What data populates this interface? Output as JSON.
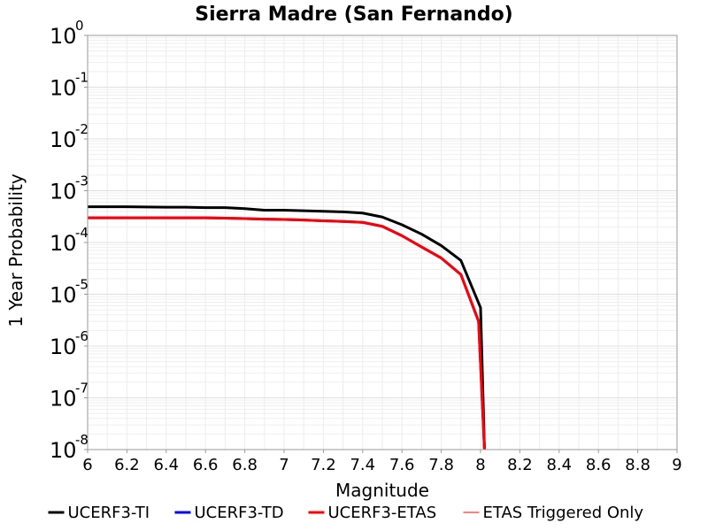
{
  "chart_data": {
    "type": "line",
    "title": "Sierra Madre (San Fernando)",
    "xlabel": "Magnitude",
    "ylabel": "1 Year Probability",
    "xlim": [
      6,
      9
    ],
    "ylim": [
      1e-08,
      1
    ],
    "yscale": "log",
    "grid": true,
    "legend_position": "bottom",
    "x_ticks": [
      "6",
      "6.2",
      "6.4",
      "6.6",
      "6.8",
      "7",
      "7.2",
      "7.4",
      "7.6",
      "7.8",
      "8",
      "8.2",
      "8.4",
      "8.6",
      "8.8",
      "9"
    ],
    "y_ticks": [
      {
        "base": "10",
        "exp": "0",
        "value": 1
      },
      {
        "base": "10",
        "exp": "-1",
        "value": 0.1
      },
      {
        "base": "10",
        "exp": "-2",
        "value": 0.01
      },
      {
        "base": "10",
        "exp": "-3",
        "value": 0.001
      },
      {
        "base": "10",
        "exp": "-4",
        "value": 0.0001
      },
      {
        "base": "10",
        "exp": "-5",
        "value": 1e-05
      },
      {
        "base": "10",
        "exp": "-6",
        "value": 1e-06
      },
      {
        "base": "10",
        "exp": "-7",
        "value": 1e-07
      },
      {
        "base": "10",
        "exp": "-8",
        "value": 1e-08
      }
    ],
    "series": [
      {
        "name": "UCERF3-TI",
        "color": "#000000",
        "x": [
          6.0,
          6.1,
          6.2,
          6.3,
          6.4,
          6.5,
          6.6,
          6.7,
          6.8,
          6.9,
          7.0,
          7.1,
          7.2,
          7.3,
          7.4,
          7.5,
          7.6,
          7.7,
          7.8,
          7.9,
          8.0,
          8.02
        ],
        "y": [
          0.00049,
          0.00049,
          0.00049,
          0.000485,
          0.00048,
          0.00048,
          0.00047,
          0.00047,
          0.00045,
          0.00042,
          0.00042,
          0.00041,
          0.0004,
          0.00039,
          0.00037,
          0.00031,
          0.00022,
          0.000145,
          8.7e-05,
          4.5e-05,
          5.5e-06,
          1e-08
        ]
      },
      {
        "name": "UCERF3-TD",
        "color": "#0000ff",
        "x": [
          6.0,
          6.1,
          6.2,
          6.3,
          6.4,
          6.5,
          6.6,
          6.7,
          6.8,
          6.9,
          7.0,
          7.1,
          7.2,
          7.3,
          7.4,
          7.5,
          7.6,
          7.7,
          7.8,
          7.9,
          7.99,
          8.02
        ],
        "y": [
          0.0003,
          0.0003,
          0.0003,
          0.0003,
          0.0003,
          0.0003,
          0.0003,
          0.000295,
          0.00029,
          0.000282,
          0.000278,
          0.000272,
          0.000262,
          0.000255,
          0.000245,
          0.000205,
          0.000135,
          8.2e-05,
          5e-05,
          2.4e-05,
          3e-06,
          1e-08
        ]
      },
      {
        "name": "UCERF3-ETAS",
        "color": "#ff0000",
        "x": [
          6.0,
          6.1,
          6.2,
          6.3,
          6.4,
          6.5,
          6.6,
          6.7,
          6.8,
          6.9,
          7.0,
          7.1,
          7.2,
          7.3,
          7.4,
          7.5,
          7.6,
          7.7,
          7.8,
          7.9,
          7.99,
          8.02
        ],
        "y": [
          0.0003,
          0.0003,
          0.0003,
          0.0003,
          0.0003,
          0.0003,
          0.0003,
          0.000295,
          0.00029,
          0.000282,
          0.000278,
          0.000272,
          0.000262,
          0.000255,
          0.000245,
          0.000205,
          0.000135,
          8.2e-05,
          5e-05,
          2.4e-05,
          3e-06,
          1e-08
        ]
      },
      {
        "name": "ETAS Triggered Only",
        "color": "#ff0000",
        "x": [],
        "y": []
      }
    ]
  }
}
